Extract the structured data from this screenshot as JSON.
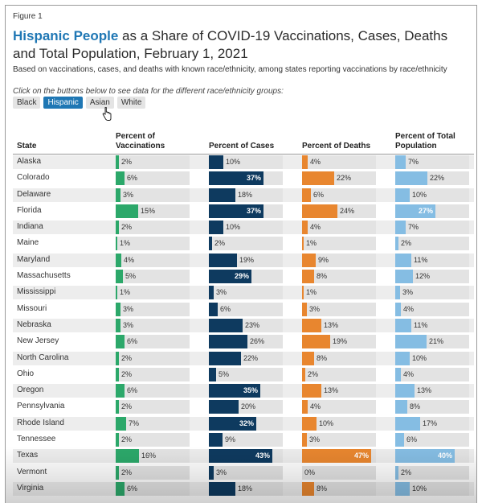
{
  "figure_label": "Figure 1",
  "title": {
    "highlight": "Hispanic People",
    "rest": " as a Share of COVID-19 Vaccinations, Cases, Deaths and Total Population, February 1, 2021"
  },
  "subtitle": "Based on vaccinations, cases, and deaths with known race/ethnicity, among states reporting vaccinations by race/ethnicity",
  "instructions": "Click on the buttons below to see data for the different race/ethnicity groups:",
  "buttons": [
    {
      "label": "Black",
      "active": false
    },
    {
      "label": "Hispanic",
      "active": true
    },
    {
      "label": "Asian",
      "active": false
    },
    {
      "label": "White",
      "active": false
    }
  ],
  "colors": {
    "vaccinations": "#2ca86a",
    "cases": "#0e3a5f",
    "deaths": "#e8862f",
    "population": "#85bde3",
    "track": "#e3e3e3",
    "accent": "#1f77b4"
  },
  "chart_data": {
    "type": "table",
    "columns": [
      "State",
      "Percent of Vaccinations",
      "Percent of Cases",
      "Percent of Deaths",
      "Percent of Total Population"
    ],
    "series_keys": [
      "vaccinations",
      "cases",
      "deaths",
      "population"
    ],
    "scale_max": 50,
    "rows": [
      {
        "state": "Alaska",
        "vaccinations": 2,
        "cases": 10,
        "deaths": 4,
        "population": 7
      },
      {
        "state": "Colorado",
        "vaccinations": 6,
        "cases": 37,
        "deaths": 22,
        "population": 22
      },
      {
        "state": "Delaware",
        "vaccinations": 3,
        "cases": 18,
        "deaths": 6,
        "population": 10
      },
      {
        "state": "Florida",
        "vaccinations": 15,
        "cases": 37,
        "deaths": 24,
        "population": 27
      },
      {
        "state": "Indiana",
        "vaccinations": 2,
        "cases": 10,
        "deaths": 4,
        "population": 7
      },
      {
        "state": "Maine",
        "vaccinations": 1,
        "cases": 2,
        "deaths": 1,
        "population": 2
      },
      {
        "state": "Maryland",
        "vaccinations": 4,
        "cases": 19,
        "deaths": 9,
        "population": 11
      },
      {
        "state": "Massachusetts",
        "vaccinations": 5,
        "cases": 29,
        "deaths": 8,
        "population": 12
      },
      {
        "state": "Mississippi",
        "vaccinations": 1,
        "cases": 3,
        "deaths": 1,
        "population": 3
      },
      {
        "state": "Missouri",
        "vaccinations": 3,
        "cases": 6,
        "deaths": 3,
        "population": 4
      },
      {
        "state": "Nebraska",
        "vaccinations": 3,
        "cases": 23,
        "deaths": 13,
        "population": 11
      },
      {
        "state": "New Jersey",
        "vaccinations": 6,
        "cases": 26,
        "deaths": 19,
        "population": 21
      },
      {
        "state": "North Carolina",
        "vaccinations": 2,
        "cases": 22,
        "deaths": 8,
        "population": 10
      },
      {
        "state": "Ohio",
        "vaccinations": 2,
        "cases": 5,
        "deaths": 2,
        "population": 4
      },
      {
        "state": "Oregon",
        "vaccinations": 6,
        "cases": 35,
        "deaths": 13,
        "population": 13
      },
      {
        "state": "Pennsylvania",
        "vaccinations": 2,
        "cases": 20,
        "deaths": 4,
        "population": 8
      },
      {
        "state": "Rhode Island",
        "vaccinations": 7,
        "cases": 32,
        "deaths": 10,
        "population": 17
      },
      {
        "state": "Tennessee",
        "vaccinations": 2,
        "cases": 9,
        "deaths": 3,
        "population": 6
      },
      {
        "state": "Texas",
        "vaccinations": 16,
        "cases": 43,
        "deaths": 47,
        "population": 40
      },
      {
        "state": "Vermont",
        "vaccinations": 2,
        "cases": 3,
        "deaths": 0,
        "population": 2
      },
      {
        "state": "Virginia",
        "vaccinations": 6,
        "cases": 18,
        "deaths": 8,
        "population": 10
      }
    ]
  }
}
